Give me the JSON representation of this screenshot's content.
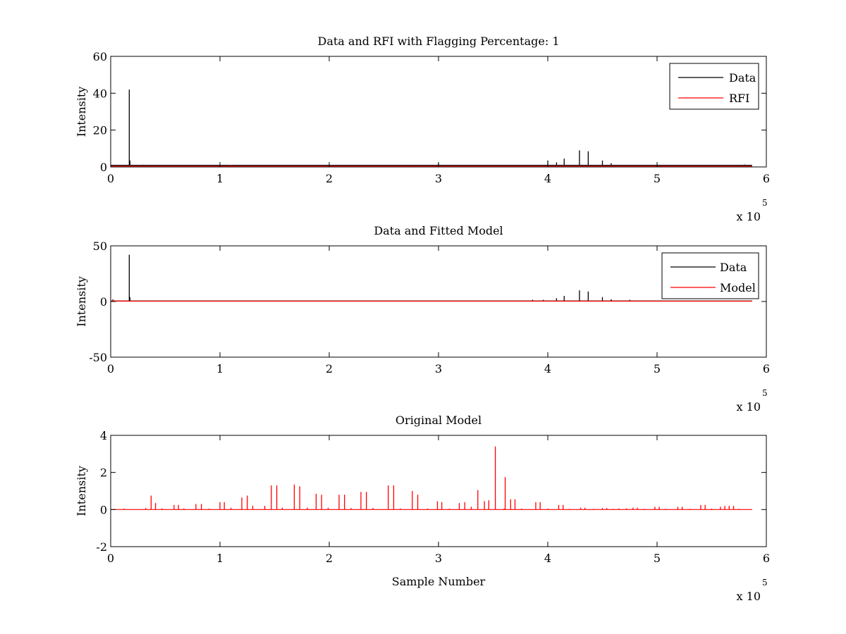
{
  "chart_data": [
    {
      "type": "line",
      "title": "Data and RFI with Flagging Percentage: 1",
      "xlabel": "",
      "ylabel": "Intensity",
      "xlim": [
        0,
        6
      ],
      "ylim": [
        0,
        60
      ],
      "x_multiplier_label": "x 10",
      "x_multiplier_exponent": "5",
      "xticks": [
        "0",
        "1",
        "2",
        "3",
        "4",
        "5",
        "6"
      ],
      "yticks": [
        "0",
        "20",
        "40",
        "60"
      ],
      "grid": false,
      "legend_position": "top-right",
      "legend": [
        {
          "name": "Data",
          "color": "#000000"
        },
        {
          "name": "RFI",
          "color": "#ff0000"
        }
      ],
      "series": [
        {
          "name": "Data",
          "color": "#000000",
          "baseline": 0.9,
          "x_end": 5.87,
          "spikes": [
            [
              0.17,
              42
            ],
            [
              0.176,
              3.5
            ],
            [
              0.3,
              1.2
            ],
            [
              0.55,
              0.8
            ],
            [
              1.0,
              1.1
            ],
            [
              3.0,
              2.0
            ],
            [
              4.0,
              3.5
            ],
            [
              4.08,
              2.5
            ],
            [
              4.15,
              4.5
            ],
            [
              4.29,
              9
            ],
            [
              4.37,
              8.5
            ],
            [
              4.5,
              3.5
            ],
            [
              4.58,
              2.0
            ],
            [
              5.0,
              1.2
            ],
            [
              5.5,
              1.0
            ],
            [
              5.8,
              1.3
            ]
          ]
        },
        {
          "name": "RFI",
          "color": "#ff0000",
          "baseline": 0.4,
          "x_end": 5.87,
          "spikes": [
            [
              1.1,
              1.0
            ],
            [
              2.78,
              0.8
            ]
          ]
        }
      ]
    },
    {
      "type": "line",
      "title": "Data and Fitted Model",
      "xlabel": "",
      "ylabel": "Intensity",
      "xlim": [
        0,
        6
      ],
      "ylim": [
        -50,
        50
      ],
      "x_multiplier_label": "x 10",
      "x_multiplier_exponent": "5",
      "xticks": [
        "0",
        "1",
        "2",
        "3",
        "4",
        "5",
        "6"
      ],
      "yticks": [
        "-50",
        "0",
        "50"
      ],
      "grid": false,
      "legend_position": "top-right",
      "legend": [
        {
          "name": "Data",
          "color": "#000000"
        },
        {
          "name": "Model",
          "color": "#ff0000"
        }
      ],
      "series": [
        {
          "name": "Data",
          "color": "#000000",
          "baseline": 0.5,
          "x_end": 5.87,
          "spikes": [
            [
              0.02,
              2
            ],
            [
              0.17,
              42
            ],
            [
              0.176,
              4
            ],
            [
              3.86,
              1.5
            ],
            [
              3.96,
              1.5
            ],
            [
              4.08,
              3
            ],
            [
              4.15,
              5
            ],
            [
              4.29,
              10
            ],
            [
              4.37,
              9
            ],
            [
              4.5,
              4
            ],
            [
              4.58,
              2
            ],
            [
              4.75,
              1.5
            ]
          ]
        },
        {
          "name": "Model",
          "color": "#ff0000",
          "baseline": 0.3,
          "x_end": 5.87,
          "spikes": [
            [
              0.02,
              1.5
            ],
            [
              0.1,
              0.8
            ]
          ]
        }
      ]
    },
    {
      "type": "line",
      "title": "Original Model",
      "xlabel": "Sample Number",
      "ylabel": "Intensity",
      "xlim": [
        0,
        6
      ],
      "ylim": [
        -2,
        4
      ],
      "x_multiplier_label": "x 10",
      "x_multiplier_exponent": "5",
      "xticks": [
        "0",
        "1",
        "2",
        "3",
        "4",
        "5",
        "6"
      ],
      "yticks": [
        "-2",
        "0",
        "2",
        "4"
      ],
      "grid": false,
      "legend": [],
      "series": [
        {
          "name": "",
          "color": "#ff0000",
          "baseline": 0,
          "x_end": 5.87,
          "spikes": [
            [
              0.12,
              0.05
            ],
            [
              0.32,
              0.08
            ],
            [
              0.37,
              0.75
            ],
            [
              0.41,
              0.35
            ],
            [
              0.47,
              0.06
            ],
            [
              0.58,
              0.25
            ],
            [
              0.62,
              0.25
            ],
            [
              0.67,
              0.06
            ],
            [
              0.78,
              0.3
            ],
            [
              0.83,
              0.3
            ],
            [
              0.9,
              0.05
            ],
            [
              1.0,
              0.4
            ],
            [
              1.04,
              0.4
            ],
            [
              1.1,
              0.1
            ],
            [
              1.2,
              0.65
            ],
            [
              1.25,
              0.75
            ],
            [
              1.3,
              0.2
            ],
            [
              1.41,
              0.2
            ],
            [
              1.47,
              1.3
            ],
            [
              1.52,
              1.3
            ],
            [
              1.57,
              0.1
            ],
            [
              1.68,
              1.35
            ],
            [
              1.73,
              1.25
            ],
            [
              1.8,
              0.1
            ],
            [
              1.88,
              0.85
            ],
            [
              1.93,
              0.8
            ],
            [
              1.99,
              0.1
            ],
            [
              2.09,
              0.8
            ],
            [
              2.14,
              0.8
            ],
            [
              2.2,
              0.08
            ],
            [
              2.29,
              0.95
            ],
            [
              2.34,
              0.95
            ],
            [
              2.4,
              0.08
            ],
            [
              2.54,
              1.3
            ],
            [
              2.59,
              1.3
            ],
            [
              2.65,
              0.06
            ],
            [
              2.76,
              1.0
            ],
            [
              2.81,
              0.8
            ],
            [
              2.9,
              0.05
            ],
            [
              2.99,
              0.45
            ],
            [
              3.03,
              0.4
            ],
            [
              3.1,
              0.05
            ],
            [
              3.19,
              0.35
            ],
            [
              3.24,
              0.4
            ],
            [
              3.3,
              0.15
            ],
            [
              3.36,
              1.05
            ],
            [
              3.42,
              0.45
            ],
            [
              3.46,
              0.5
            ],
            [
              3.52,
              3.4
            ],
            [
              3.6,
              0.05
            ],
            [
              3.61,
              1.75
            ],
            [
              3.66,
              0.55
            ],
            [
              3.7,
              0.55
            ],
            [
              3.76,
              0.05
            ],
            [
              3.89,
              0.4
            ],
            [
              3.93,
              0.4
            ],
            [
              4.0,
              0.05
            ],
            [
              4.1,
              0.25
            ],
            [
              4.14,
              0.25
            ],
            [
              4.2,
              0.04
            ],
            [
              4.3,
              0.1
            ],
            [
              4.34,
              0.1
            ],
            [
              4.42,
              0.04
            ],
            [
              4.5,
              0.08
            ],
            [
              4.54,
              0.08
            ],
            [
              4.6,
              0.04
            ],
            [
              4.65,
              0.06
            ],
            [
              4.72,
              0.06
            ],
            [
              4.78,
              0.1
            ],
            [
              4.82,
              0.1
            ],
            [
              4.88,
              0.04
            ],
            [
              4.98,
              0.15
            ],
            [
              5.02,
              0.15
            ],
            [
              5.08,
              0.04
            ],
            [
              5.19,
              0.15
            ],
            [
              5.23,
              0.15
            ],
            [
              5.3,
              0.04
            ],
            [
              5.4,
              0.25
            ],
            [
              5.44,
              0.25
            ],
            [
              5.5,
              0.05
            ],
            [
              5.58,
              0.15
            ],
            [
              5.62,
              0.2
            ],
            [
              5.66,
              0.2
            ],
            [
              5.7,
              0.2
            ],
            [
              5.75,
              0.04
            ]
          ]
        }
      ]
    }
  ]
}
